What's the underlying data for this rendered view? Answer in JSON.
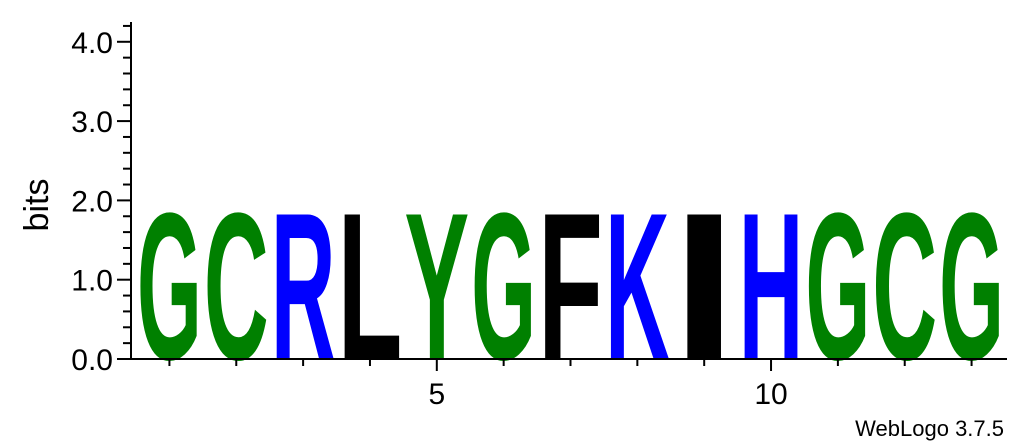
{
  "chart_data": {
    "type": "sequence-logo",
    "ylabel": "bits",
    "ylim": [
      0,
      4.3
    ],
    "yticks": [
      "0.0",
      "1.0",
      "2.0",
      "3.0",
      "4.0"
    ],
    "xticks": [
      {
        "position": 5,
        "label": "5"
      },
      {
        "position": 10,
        "label": "10"
      }
    ],
    "positions": [
      {
        "pos": 1,
        "letter": "G",
        "bits": 1.93
      },
      {
        "pos": 2,
        "letter": "C",
        "bits": 1.93
      },
      {
        "pos": 3,
        "letter": "R",
        "bits": 1.93
      },
      {
        "pos": 4,
        "letter": "L",
        "bits": 1.93
      },
      {
        "pos": 5,
        "letter": "Y",
        "bits": 1.93
      },
      {
        "pos": 6,
        "letter": "G",
        "bits": 1.93
      },
      {
        "pos": 7,
        "letter": "F",
        "bits": 1.93
      },
      {
        "pos": 8,
        "letter": "K",
        "bits": 1.93
      },
      {
        "pos": 9,
        "letter": "I",
        "bits": 1.93
      },
      {
        "pos": 10,
        "letter": "H",
        "bits": 1.93
      },
      {
        "pos": 11,
        "letter": "G",
        "bits": 1.93
      },
      {
        "pos": 12,
        "letter": "C",
        "bits": 1.93
      },
      {
        "pos": 13,
        "letter": "G",
        "bits": 1.93
      }
    ],
    "colors": {
      "G": "#008000",
      "C": "#008000",
      "Y": "#008000",
      "S": "#008000",
      "T": "#008000",
      "R": "#0000ff",
      "K": "#0000ff",
      "H": "#0000ff",
      "L": "#000000",
      "F": "#000000",
      "I": "#000000"
    }
  },
  "credit": "WebLogo 3.7.5"
}
